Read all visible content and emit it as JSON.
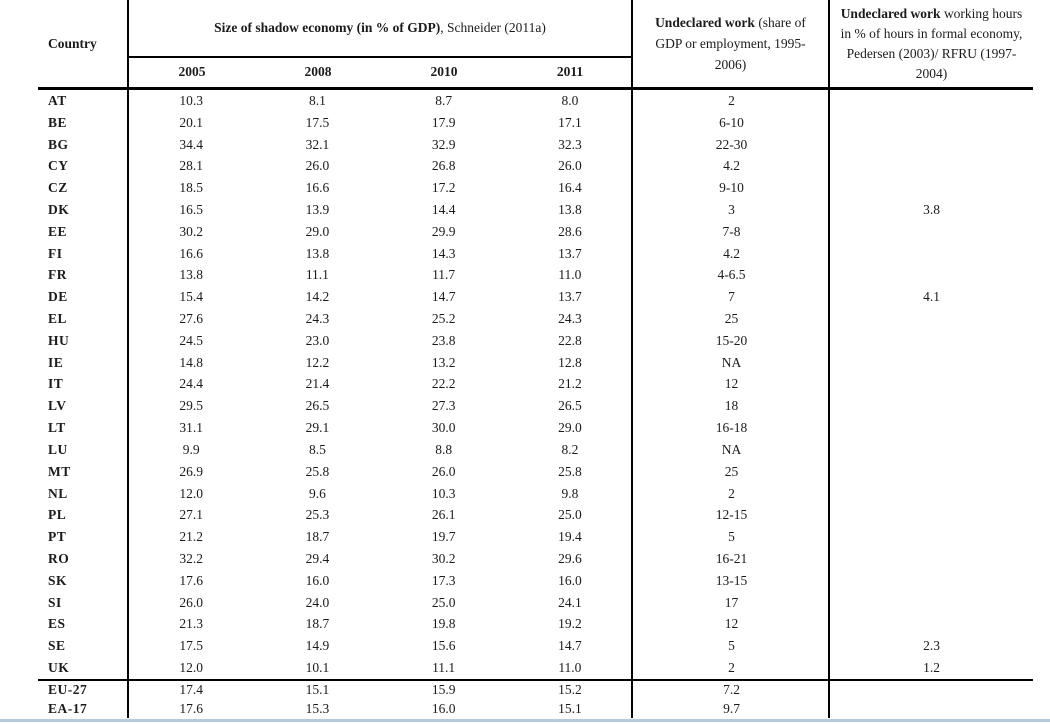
{
  "page": {
    "country_header": "Country",
    "group_header_bold": "Size of shadow economy (in % of GDP)",
    "group_header_rest": ", Schneider (2011a)",
    "years": [
      "2005",
      "2008",
      "2010",
      "2011"
    ],
    "undeclared_header_bold": "Undeclared work",
    "undeclared_header_rest": " (share of GDP or employment, 1995-2006)",
    "hours_header_bold": "Undeclared work",
    "hours_header_rest": " working hours in % of hours in formal economy, Pedersen (2003)/ RFRU (1997-2004)",
    "colors": {
      "rule": "#000000",
      "bottom_line": "#b5cbdc",
      "text": "#1b1b1b"
    },
    "rows": [
      [
        "AT",
        "10.3",
        "8.1",
        "8.7",
        "8.0",
        "2",
        ""
      ],
      [
        "BE",
        "20.1",
        "17.5",
        "17.9",
        "17.1",
        "6-10",
        ""
      ],
      [
        "BG",
        "34.4",
        "32.1",
        "32.9",
        "32.3",
        "22-30",
        ""
      ],
      [
        "CY",
        "28.1",
        "26.0",
        "26.8",
        "26.0",
        "4.2",
        ""
      ],
      [
        "CZ",
        "18.5",
        "16.6",
        "17.2",
        "16.4",
        "9-10",
        ""
      ],
      [
        "DK",
        "16.5",
        "13.9",
        "14.4",
        "13.8",
        "3",
        "3.8"
      ],
      [
        "EE",
        "30.2",
        "29.0",
        "29.9",
        "28.6",
        "7-8",
        ""
      ],
      [
        "FI",
        "16.6",
        "13.8",
        "14.3",
        "13.7",
        "4.2",
        ""
      ],
      [
        "FR",
        "13.8",
        "11.1",
        "11.7",
        "11.0",
        "4-6.5",
        ""
      ],
      [
        "DE",
        "15.4",
        "14.2",
        "14.7",
        "13.7",
        "7",
        "4.1"
      ],
      [
        "EL",
        "27.6",
        "24.3",
        "25.2",
        "24.3",
        "25",
        ""
      ],
      [
        "HU",
        "24.5",
        "23.0",
        "23.8",
        "22.8",
        "15-20",
        ""
      ],
      [
        "IE",
        "14.8",
        "12.2",
        "13.2",
        "12.8",
        "NA",
        ""
      ],
      [
        "IT",
        "24.4",
        "21.4",
        "22.2",
        "21.2",
        "12",
        ""
      ],
      [
        "LV",
        "29.5",
        "26.5",
        "27.3",
        "26.5",
        "18",
        ""
      ],
      [
        "LT",
        "31.1",
        "29.1",
        "30.0",
        "29.0",
        "16-18",
        ""
      ],
      [
        "LU",
        "9.9",
        "8.5",
        "8.8",
        "8.2",
        "NA",
        ""
      ],
      [
        "MT",
        "26.9",
        "25.8",
        "26.0",
        "25.8",
        "25",
        ""
      ],
      [
        "NL",
        "12.0",
        "9.6",
        "10.3",
        "9.8",
        "2",
        ""
      ],
      [
        "PL",
        "27.1",
        "25.3",
        "26.1",
        "25.0",
        "12-15",
        ""
      ],
      [
        "PT",
        "21.2",
        "18.7",
        "19.7",
        "19.4",
        "5",
        ""
      ],
      [
        "RO",
        "32.2",
        "29.4",
        "30.2",
        "29.6",
        "16-21",
        ""
      ],
      [
        "SK",
        "17.6",
        "16.0",
        "17.3",
        "16.0",
        "13-15",
        ""
      ],
      [
        "SI",
        "26.0",
        "24.0",
        "25.0",
        "24.1",
        "17",
        ""
      ],
      [
        "ES",
        "21.3",
        "18.7",
        "19.8",
        "19.2",
        "12",
        ""
      ],
      [
        "SE",
        "17.5",
        "14.9",
        "15.6",
        "14.7",
        "5",
        "2.3"
      ],
      [
        "UK",
        "12.0",
        "10.1",
        "11.1",
        "11.0",
        "2",
        "1.2"
      ]
    ],
    "summary_rows": [
      [
        "EU-27",
        "17.4",
        "15.1",
        "15.9",
        "15.2",
        "7.2",
        ""
      ],
      [
        "EA-17",
        "17.6",
        "15.3",
        "16.0",
        "15.1",
        "9.7",
        ""
      ]
    ]
  }
}
